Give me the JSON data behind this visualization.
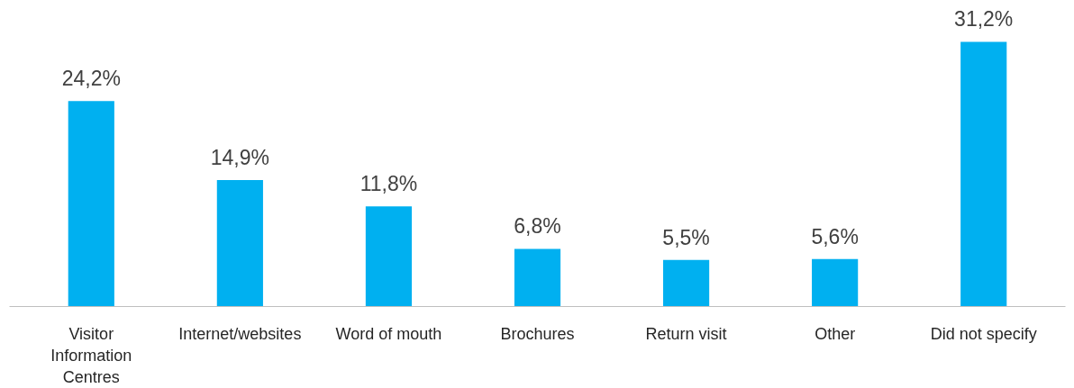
{
  "chart_data": {
    "type": "bar",
    "categories": [
      "Visitor Information Centres",
      "Internet/websites",
      "Word of mouth",
      "Brochures",
      "Return visit",
      "Other",
      "Did not specify"
    ],
    "values": [
      24.2,
      14.9,
      11.8,
      6.8,
      5.5,
      5.6,
      31.2
    ],
    "value_labels": [
      "24,2%",
      "14,9%",
      "11,8%",
      "6,8%",
      "5,5%",
      "5,6%",
      "31,2%"
    ],
    "color": "#00b0f0",
    "grid": false,
    "tick_labels": "x"
  }
}
